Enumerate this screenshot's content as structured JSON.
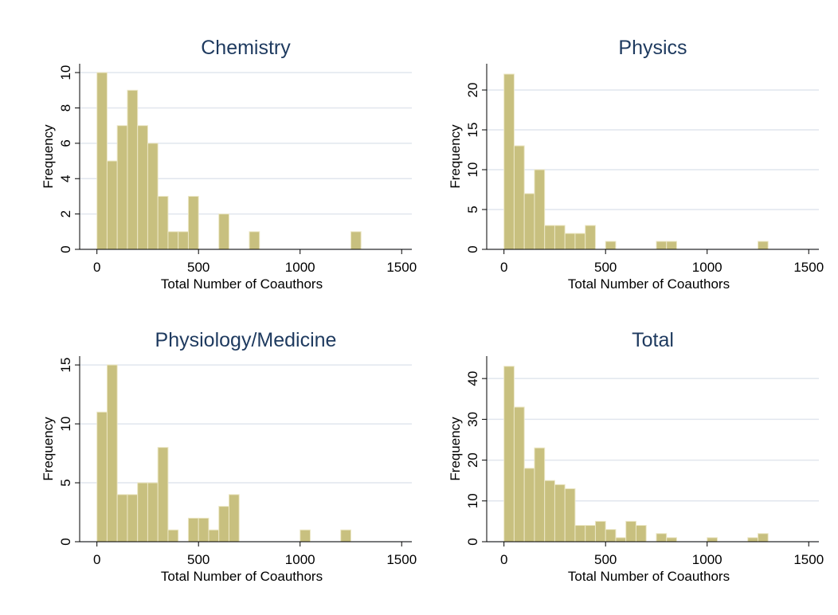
{
  "chart_data": [
    {
      "type": "histogram",
      "title": "Chemistry",
      "xlabel": "Total Number of Coauthors",
      "ylabel": "Frequency",
      "bins": [
        0,
        50,
        100,
        150,
        200,
        250,
        300,
        350,
        400,
        450,
        500,
        550,
        600,
        650,
        700,
        750,
        800,
        850,
        900,
        950,
        1000,
        1050,
        1100,
        1150,
        1200,
        1250,
        1300
      ],
      "values": [
        10,
        5,
        7,
        9,
        7,
        6,
        3,
        1,
        1,
        3,
        0,
        0,
        2,
        0,
        0,
        1,
        0,
        0,
        0,
        0,
        0,
        0,
        0,
        0,
        0,
        1
      ],
      "color": "#c8c07f",
      "xlim": [
        -85,
        1550
      ],
      "xticks": [
        0,
        500,
        1000,
        1500
      ],
      "ylim": [
        0,
        10.5
      ],
      "yticks": [
        0,
        2,
        4,
        6,
        8,
        10
      ],
      "grid": true
    },
    {
      "type": "histogram",
      "title": "Physics",
      "xlabel": "Total Number of Coauthors",
      "ylabel": "Frequency",
      "bins": [
        0,
        50,
        100,
        150,
        200,
        250,
        300,
        350,
        400,
        450,
        500,
        550,
        600,
        650,
        700,
        750,
        800,
        850,
        900,
        950,
        1000,
        1050,
        1100,
        1150,
        1200,
        1250,
        1300
      ],
      "values": [
        22,
        13,
        7,
        10,
        3,
        3,
        2,
        2,
        3,
        0,
        1,
        0,
        0,
        0,
        0,
        1,
        1,
        0,
        0,
        0,
        0,
        0,
        0,
        0,
        0,
        1
      ],
      "color": "#c8c07f",
      "xlim": [
        -85,
        1550
      ],
      "xticks": [
        0,
        500,
        1000,
        1500
      ],
      "ylim": [
        0,
        23.3
      ],
      "yticks": [
        0,
        5,
        10,
        15,
        20
      ],
      "grid": true
    },
    {
      "type": "histogram",
      "title": "Physiology/Medicine",
      "xlabel": "Total Number of Coauthors",
      "ylabel": "Frequency",
      "bins": [
        0,
        50,
        100,
        150,
        200,
        250,
        300,
        350,
        400,
        450,
        500,
        550,
        600,
        650,
        700,
        750,
        800,
        850,
        900,
        950,
        1000,
        1050,
        1100,
        1150,
        1200,
        1250,
        1300
      ],
      "values": [
        11,
        15,
        4,
        4,
        5,
        5,
        8,
        1,
        0,
        2,
        2,
        1,
        3,
        4,
        0,
        0,
        0,
        0,
        0,
        0,
        1,
        0,
        0,
        0,
        1,
        0
      ],
      "color": "#c8c07f",
      "xlim": [
        -85,
        1550
      ],
      "xticks": [
        0,
        500,
        1000,
        1500
      ],
      "ylim": [
        0,
        15.75
      ],
      "yticks": [
        0,
        5,
        10,
        15
      ],
      "grid": true
    },
    {
      "type": "histogram",
      "title": "Total",
      "xlabel": "Total Number of Coauthors",
      "ylabel": "Frequency",
      "bins": [
        0,
        50,
        100,
        150,
        200,
        250,
        300,
        350,
        400,
        450,
        500,
        550,
        600,
        650,
        700,
        750,
        800,
        850,
        900,
        950,
        1000,
        1050,
        1100,
        1150,
        1200,
        1250,
        1300
      ],
      "values": [
        43,
        33,
        18,
        23,
        15,
        14,
        13,
        4,
        4,
        5,
        3,
        1,
        5,
        4,
        0,
        2,
        1,
        0,
        0,
        0,
        1,
        0,
        0,
        0,
        1,
        2
      ],
      "color": "#c8c07f",
      "xlim": [
        -85,
        1550
      ],
      "xticks": [
        0,
        500,
        1000,
        1500
      ],
      "ylim": [
        0,
        45.5
      ],
      "yticks": [
        0,
        10,
        20,
        30,
        40
      ],
      "grid": true
    }
  ]
}
